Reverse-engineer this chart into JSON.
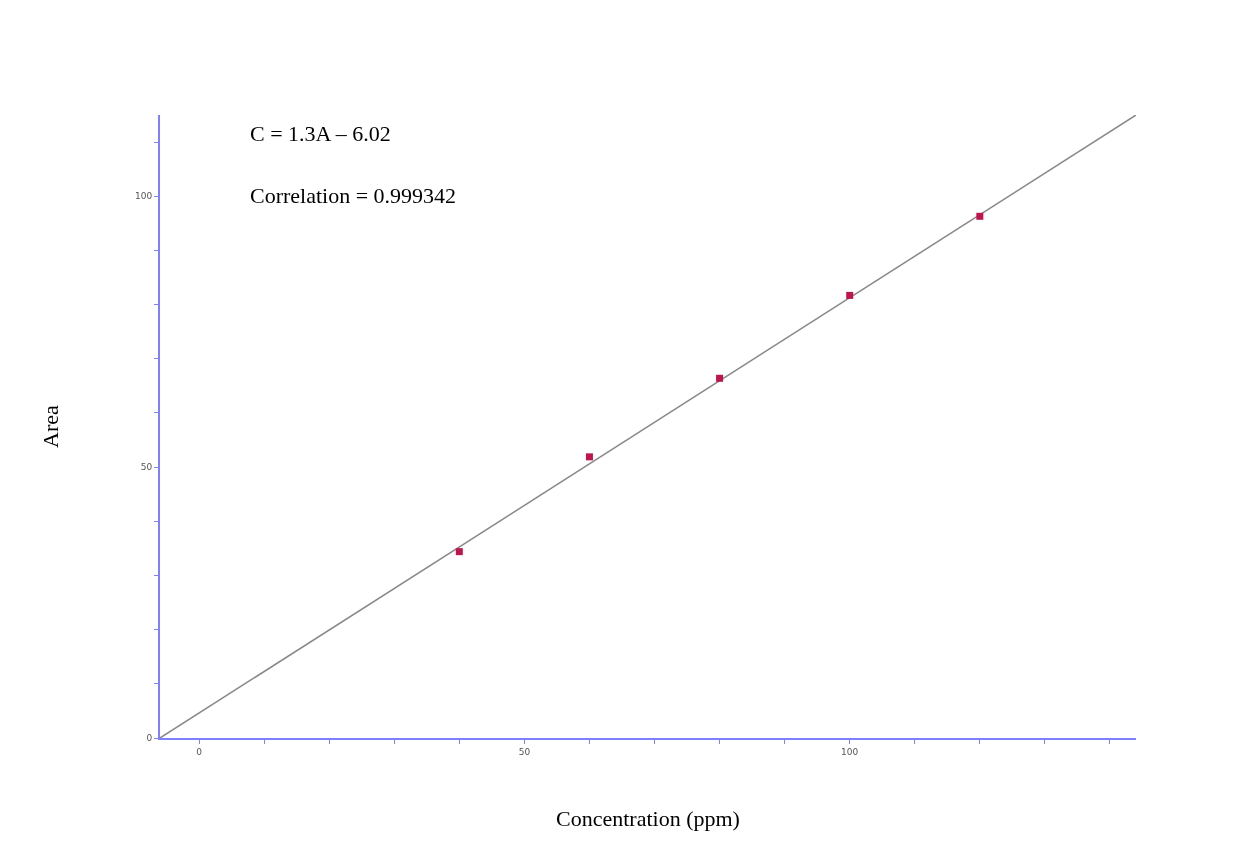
{
  "chart_data": {
    "type": "scatter",
    "xlabel": "Concentration (ppm)",
    "ylabel": "Area",
    "annotations": [
      "C = 1.3A – 6.02",
      "Correlation = 0.999342"
    ],
    "xlim": [
      -6,
      144
    ],
    "ylim": [
      0,
      115
    ],
    "xticks": [
      0,
      {
        "value": 10,
        "label": null
      },
      {
        "value": 20,
        "label": null
      },
      {
        "value": 30,
        "label": null
      },
      {
        "value": 40,
        "label": null
      },
      50,
      {
        "value": 60,
        "label": null
      },
      {
        "value": 70,
        "label": null
      },
      {
        "value": 80,
        "label": null
      },
      {
        "value": 90,
        "label": null
      },
      100,
      {
        "value": 110,
        "label": null
      },
      {
        "value": 120,
        "label": null
      },
      {
        "value": 130,
        "label": null
      },
      {
        "value": 140,
        "label": null
      }
    ],
    "yticks": [
      0,
      {
        "value": 10,
        "label": null
      },
      {
        "value": 20,
        "label": null
      },
      {
        "value": 30,
        "label": null
      },
      {
        "value": 40,
        "label": null
      },
      50,
      {
        "value": 60,
        "label": null
      },
      {
        "value": 70,
        "label": null
      },
      {
        "value": 80,
        "label": null
      },
      {
        "value": 90,
        "label": null
      },
      100,
      {
        "value": 110,
        "label": null
      }
    ],
    "grid": false,
    "marker": "square",
    "series": [
      {
        "type": "line",
        "color": "#888888",
        "x": [
          -6,
          144
        ],
        "values": [
          0,
          115
        ],
        "line_style": "solid",
        "marker": "none"
      },
      {
        "color": "#c0144c",
        "x": [
          40,
          60,
          80,
          100,
          120
        ],
        "values": [
          34.4,
          51.9,
          66.4,
          81.7,
          96.3
        ]
      }
    ]
  }
}
